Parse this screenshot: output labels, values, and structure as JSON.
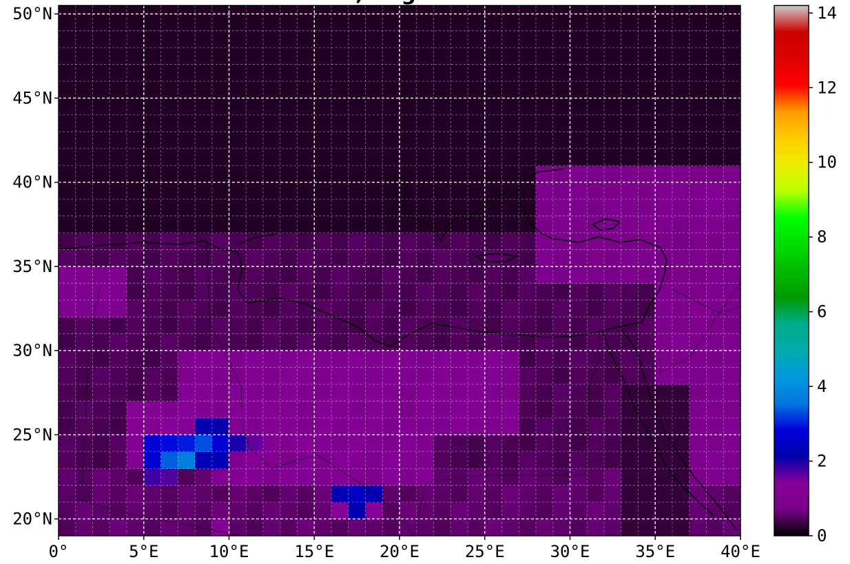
{
  "title": ", ... g",
  "map": {
    "lon_range": [
      0,
      40
    ],
    "lat_range": [
      19,
      50.5
    ],
    "cell_size_deg": 1,
    "grid": {
      "shown": true,
      "style": "white dashed",
      "major_step_deg": 5,
      "minor_step_deg": 1
    },
    "coastlines": true,
    "borders": true
  },
  "x_ticks": [
    {
      "value": 0,
      "label": "0°"
    },
    {
      "value": 5,
      "label": "5°E"
    },
    {
      "value": 10,
      "label": "10°E"
    },
    {
      "value": 15,
      "label": "15°E"
    },
    {
      "value": 20,
      "label": "20°E"
    },
    {
      "value": 25,
      "label": "25°E"
    },
    {
      "value": 30,
      "label": "30°E"
    },
    {
      "value": 35,
      "label": "35°E"
    },
    {
      "value": 40,
      "label": "40°E"
    }
  ],
  "y_ticks": [
    {
      "value": 20,
      "label": "20°N"
    },
    {
      "value": 25,
      "label": "25°N"
    },
    {
      "value": 30,
      "label": "30°N"
    },
    {
      "value": 35,
      "label": "35°N"
    },
    {
      "value": 40,
      "label": "40°N"
    },
    {
      "value": 45,
      "label": "45°N"
    },
    {
      "value": 50,
      "label": "50°N"
    }
  ],
  "colorbar": {
    "min": 0,
    "max": 14.2,
    "colormap": "nipy_spectral",
    "ticks": [
      {
        "value": 0,
        "label": "0"
      },
      {
        "value": 2,
        "label": "2"
      },
      {
        "value": 4,
        "label": "4"
      },
      {
        "value": 6,
        "label": "6"
      },
      {
        "value": 8,
        "label": "8"
      },
      {
        "value": 10,
        "label": "10"
      },
      {
        "value": 12,
        "label": "12"
      },
      {
        "value": 14,
        "label": "14"
      }
    ]
  },
  "chart_data": {
    "type": "heatmap",
    "x_range": [
      0,
      40
    ],
    "y_range": [
      19,
      50.5
    ],
    "cmap": "nipy_spectral",
    "vmin": 0,
    "vmax": 14.2,
    "background_value": 0.2,
    "regions": [
      {
        "lon": [
          0,
          40
        ],
        "lat": [
          19,
          37
        ],
        "value": 0.45
      },
      {
        "lon": [
          0,
          40
        ],
        "lat": [
          19,
          23
        ],
        "value": 0.55
      },
      {
        "lon": [
          28,
          40
        ],
        "lat": [
          34,
          41
        ],
        "value": 0.85
      },
      {
        "lon": [
          36,
          40
        ],
        "lat": [
          38,
          40
        ],
        "value": 1.0
      },
      {
        "lon": [
          0,
          4
        ],
        "lat": [
          32,
          35
        ],
        "value": 1.0
      },
      {
        "lon": [
          7,
          27
        ],
        "lat": [
          25,
          30
        ],
        "value": 1.05
      },
      {
        "lon": [
          9,
          22
        ],
        "lat": [
          22,
          27
        ],
        "value": 1.1
      },
      {
        "lon": [
          4,
          12
        ],
        "lat": [
          23,
          27
        ],
        "value": 1.2
      },
      {
        "lon": [
          35,
          40
        ],
        "lat": [
          22,
          34
        ],
        "value": 0.95
      },
      {
        "lon": [
          33,
          37
        ],
        "lat": [
          19,
          28
        ],
        "value": 0.3
      }
    ],
    "hotspots": [
      {
        "lon": 5,
        "lat": 24,
        "value": 2.7
      },
      {
        "lon": 6,
        "lat": 24,
        "value": 2.9
      },
      {
        "lon": 6,
        "lat": 23,
        "value": 3.4
      },
      {
        "lon": 7,
        "lat": 23,
        "value": 3.7
      },
      {
        "lon": 7,
        "lat": 24,
        "value": 3.0
      },
      {
        "lon": 8,
        "lat": 24,
        "value": 3.3
      },
      {
        "lon": 8,
        "lat": 25,
        "value": 2.2
      },
      {
        "lon": 9,
        "lat": 24,
        "value": 2.7
      },
      {
        "lon": 9,
        "lat": 23,
        "value": 2.3
      },
      {
        "lon": 9,
        "lat": 25,
        "value": 2.1
      },
      {
        "lon": 10,
        "lat": 24,
        "value": 2.0
      },
      {
        "lon": 8,
        "lat": 23,
        "value": 2.3
      },
      {
        "lon": 5,
        "lat": 23,
        "value": 2.6
      },
      {
        "lon": 5,
        "lat": 22,
        "value": 1.8
      },
      {
        "lon": 6,
        "lat": 22,
        "value": 1.7
      },
      {
        "lon": 11,
        "lat": 24,
        "value": 1.6
      },
      {
        "lon": 16,
        "lat": 21,
        "value": 2.2
      },
      {
        "lon": 17,
        "lat": 21,
        "value": 2.5
      },
      {
        "lon": 18,
        "lat": 21,
        "value": 2.3
      },
      {
        "lon": 17,
        "lat": 20,
        "value": 2.2
      },
      {
        "lon": 16,
        "lat": 20,
        "value": 1.4
      },
      {
        "lon": 18,
        "lat": 20,
        "value": 1.4
      },
      {
        "lon": 19,
        "lat": 22,
        "value": 1.3
      },
      {
        "lon": 9,
        "lat": 19,
        "value": 1.2
      }
    ]
  }
}
